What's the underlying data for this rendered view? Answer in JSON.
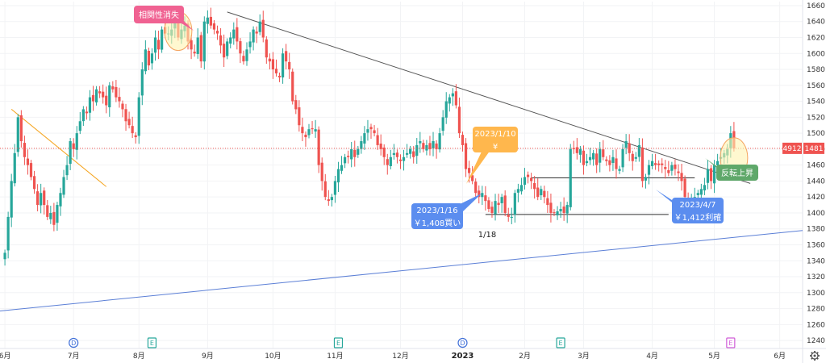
{
  "colors": {
    "up": "#26a69a",
    "down": "#ef5350",
    "trend_dark": "#555555",
    "trend_blue": "#5b7fd6",
    "trend_orange": "#f5a623",
    "support": "#333333",
    "price_line": "#ef5350",
    "callout_pink": "#f06292",
    "callout_orange": "#ffb74d",
    "callout_blue": "#5b8def",
    "callout_green": "#5fa86a",
    "highlight_fill": "#fff3b0",
    "highlight_stroke": "#f4a460",
    "event_blue": "#3f6fd8",
    "event_green": "#26a69a",
    "event_pink": "#d05ed8",
    "axis_text": "#333333"
  },
  "header": {
    "price_tag_left": "4912",
    "price_tag_right": "1481",
    "settings_icon": "gear-icon"
  },
  "chart_data": {
    "type": "candlestick",
    "title": "",
    "xlabel": "",
    "ylabel": "",
    "ylim": [
      1230,
      1665
    ],
    "y_ticks": [
      1240,
      1260,
      1280,
      1300,
      1320,
      1340,
      1360,
      1380,
      1400,
      1420,
      1440,
      1460,
      1480,
      1500,
      1520,
      1540,
      1560,
      1580,
      1600,
      1620,
      1640,
      1660
    ],
    "x_ticks": [
      {
        "label": "6月",
        "t": 0,
        "bold": false
      },
      {
        "label": "7月",
        "t": 21,
        "bold": false
      },
      {
        "label": "8月",
        "t": 41,
        "bold": false
      },
      {
        "label": "9月",
        "t": 62,
        "bold": false
      },
      {
        "label": "10月",
        "t": 82,
        "bold": false
      },
      {
        "label": "11月",
        "t": 101,
        "bold": false
      },
      {
        "label": "12月",
        "t": 121,
        "bold": false
      },
      {
        "label": "2023",
        "t": 140,
        "bold": true
      },
      {
        "label": "2月",
        "t": 159,
        "bold": false
      },
      {
        "label": "3月",
        "t": 177,
        "bold": false
      },
      {
        "label": "4月",
        "t": 198,
        "bold": false
      },
      {
        "label": "5月",
        "t": 217,
        "bold": false
      },
      {
        "label": "6月",
        "t": 237,
        "bold": false
      }
    ],
    "x_range": [
      -1.5,
      244
    ],
    "current_price": 1481,
    "closes": [
      1350,
      1395,
      1440,
      1475,
      1520,
      1490,
      1470,
      1460,
      1445,
      1430,
      1410,
      1425,
      1410,
      1395,
      1400,
      1385,
      1410,
      1425,
      1445,
      1460,
      1490,
      1480,
      1500,
      1515,
      1530,
      1525,
      1545,
      1540,
      1555,
      1550,
      1545,
      1535,
      1560,
      1555,
      1545,
      1540,
      1530,
      1515,
      1510,
      1500,
      1495,
      1545,
      1580,
      1605,
      1585,
      1600,
      1620,
      1605,
      1630,
      1625,
      1625,
      1630,
      1640,
      1620,
      1630,
      1635,
      1615,
      1605,
      1600,
      1620,
      1590,
      1640,
      1645,
      1635,
      1630,
      1625,
      1610,
      1595,
      1615,
      1620,
      1630,
      1615,
      1600,
      1590,
      1605,
      1615,
      1630,
      1625,
      1640,
      1620,
      1595,
      1590,
      1580,
      1575,
      1570,
      1600,
      1590,
      1580,
      1540,
      1530,
      1510,
      1500,
      1495,
      1505,
      1505,
      1505,
      1460,
      1440,
      1420,
      1415,
      1420,
      1440,
      1455,
      1460,
      1470,
      1470,
      1480,
      1470,
      1480,
      1490,
      1500,
      1505,
      1505,
      1500,
      1485,
      1480,
      1470,
      1460,
      1470,
      1475,
      1470,
      1465,
      1470,
      1475,
      1480,
      1470,
      1485,
      1490,
      1480,
      1485,
      1480,
      1490,
      1480,
      1500,
      1520,
      1540,
      1545,
      1550,
      1535,
      1500,
      1485,
      1455,
      1450,
      1440,
      1425,
      1420,
      1425,
      1415,
      1405,
      1400,
      1415,
      1410,
      1420,
      1400,
      1395,
      1395,
      1425,
      1430,
      1435,
      1445,
      1445,
      1440,
      1430,
      1420,
      1430,
      1420,
      1410,
      1400,
      1400,
      1402,
      1405,
      1400,
      1410,
      1480,
      1480,
      1475,
      1480,
      1460,
      1465,
      1470,
      1475,
      1460,
      1480,
      1470,
      1465,
      1460,
      1470,
      1455,
      1455,
      1480,
      1490,
      1475,
      1465,
      1470,
      1485,
      1440,
      1445,
      1460,
      1465,
      1460,
      1460,
      1460,
      1455,
      1450,
      1460,
      1455,
      1450,
      1440,
      1420,
      1410,
      1415,
      1420,
      1425,
      1430,
      1435,
      1455,
      1440,
      1460,
      1465,
      1470,
      1475,
      1480,
      1500,
      1481
    ]
  },
  "annotations": {
    "callout_correlation": "相関性消失",
    "callout_date_1_10": "2023/1/10",
    "callout_yen_1_10": "¥",
    "callout_buy_date": "2023/1/16",
    "callout_buy_price": "￥1,408買い",
    "callout_sell_date": "2023/4/7",
    "callout_sell_price": "￥1,412利確",
    "callout_reversal": "反転上昇",
    "label_1_18": "1/18"
  },
  "events": [
    {
      "letter": "D",
      "t": 21,
      "kind": "blue"
    },
    {
      "letter": "E",
      "t": 45,
      "kind": "green"
    },
    {
      "letter": "E",
      "t": 102,
      "kind": "green"
    },
    {
      "letter": "D",
      "t": 140,
      "kind": "blue"
    },
    {
      "letter": "E",
      "t": 170,
      "kind": "green"
    },
    {
      "letter": "E",
      "t": 222,
      "kind": "pink"
    }
  ]
}
